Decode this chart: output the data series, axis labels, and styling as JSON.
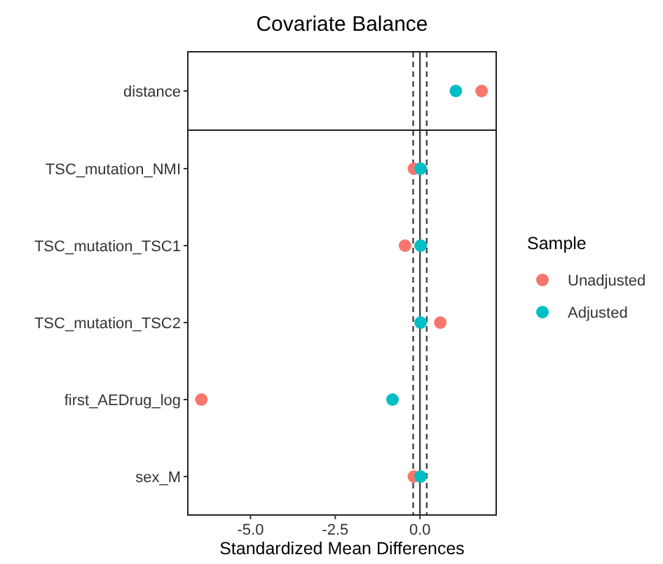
{
  "chart_data": [
    {
      "type": "scatter",
      "title": "Covariate Balance",
      "orientation": "horizontal",
      "categories": [
        "distance"
      ],
      "series": [
        {
          "color": "#f8766d",
          "values": [
            1.82
          ]
        },
        {
          "color": "#00bfc4",
          "values": [
            1.06
          ]
        }
      ],
      "xlim": [
        -6.85,
        2.25
      ],
      "tick_labels": "y",
      "marker": "circle",
      "grid": false,
      "ref_lines": [
        {
          "axis": "x",
          "value": 0,
          "line_style": "solid"
        },
        {
          "axis": "x",
          "value": -0.2,
          "line_style": "dashed"
        },
        {
          "axis": "x",
          "value": 0.2,
          "line_style": "dashed"
        }
      ]
    },
    {
      "type": "scatter",
      "orientation": "horizontal",
      "categories": [
        "TSC_mutation_NMI",
        "TSC_mutation_TSC1",
        "TSC_mutation_TSC2",
        "first_AEDrug_log",
        "sex_M"
      ],
      "xlabel": "Standardized Mean Differences",
      "legend_title": "Sample",
      "legend": "right",
      "series": [
        {
          "name": "Unadjusted",
          "color": "#f8766d",
          "values": [
            -0.18,
            -0.44,
            0.6,
            -6.45,
            -0.18
          ]
        },
        {
          "name": "Adjusted",
          "color": "#00bfc4",
          "values": [
            0.02,
            0.02,
            0.02,
            -0.81,
            0.02
          ]
        }
      ],
      "xlim": [
        -6.85,
        2.25
      ],
      "xticks": [
        {
          "value": -5,
          "label": "-5.0"
        },
        {
          "value": -2.5,
          "label": "-2.5"
        },
        {
          "value": 0,
          "label": "0.0"
        }
      ],
      "marker": "circle",
      "grid": false,
      "ref_lines": [
        {
          "axis": "x",
          "value": 0,
          "line_style": "solid"
        },
        {
          "axis": "x",
          "value": -0.2,
          "line_style": "dashed"
        },
        {
          "axis": "x",
          "value": 0.2,
          "line_style": "dashed"
        }
      ]
    }
  ]
}
